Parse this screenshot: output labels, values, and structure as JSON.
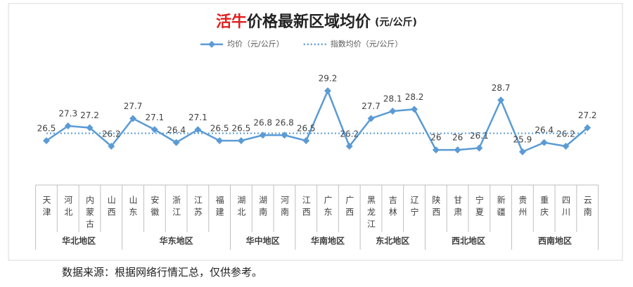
{
  "chart_data": {
    "type": "line",
    "title_highlight": "活牛",
    "title": "价格最新区域均价",
    "title_unit": "(元/公斤)",
    "categories": [
      "天津",
      "河北",
      "内蒙古",
      "山西",
      "山东",
      "安徽",
      "浙江",
      "江苏",
      "福建",
      "湖北",
      "湖南",
      "河南",
      "江西",
      "广东",
      "广西",
      "黑龙江",
      "吉林",
      "辽宁",
      "陕西",
      "甘肃",
      "宁夏",
      "新疆",
      "贵州",
      "重庆",
      "四川",
      "云南"
    ],
    "groups": [
      {
        "label": "华北地区",
        "categories": 4
      },
      {
        "label": "华东地区",
        "categories": 5
      },
      {
        "label": "华中地区",
        "categories": 3
      },
      {
        "label": "华南地区",
        "categories": 3
      },
      {
        "label": "东北地区",
        "categories": 3
      },
      {
        "label": "西北地区",
        "categories": 4
      },
      {
        "label": "西南地区",
        "categories": 4
      }
    ],
    "series": [
      {
        "name": "均价（元/公斤）",
        "color": "#5b9bd5",
        "style": "solid",
        "labels": true,
        "values": [
          26.5,
          27.3,
          27.2,
          26.2,
          27.7,
          27.1,
          26.4,
          27.1,
          26.5,
          26.5,
          26.8,
          26.8,
          26.5,
          29.2,
          26.2,
          27.7,
          28.1,
          28.2,
          26,
          26,
          26.1,
          28.7,
          25.9,
          26.4,
          26.2,
          27.2
        ]
      },
      {
        "name": "指数均价（元/公斤）",
        "color": "#5b9bd5",
        "style": "dotted",
        "labels": false,
        "values": [
          26.9,
          26.9,
          26.9,
          26.9,
          26.9,
          26.9,
          26.9,
          26.9,
          26.9,
          26.9,
          26.9,
          26.9,
          26.9,
          26.9,
          26.9,
          26.9,
          26.9,
          26.9,
          26.9,
          26.9,
          26.9,
          26.9,
          26.9,
          26.9,
          26.9,
          26.9
        ]
      }
    ],
    "ylim": [
      24.1,
      30.5
    ],
    "footer": "数据来源：根据网络行情汇总，仅供参考。"
  }
}
